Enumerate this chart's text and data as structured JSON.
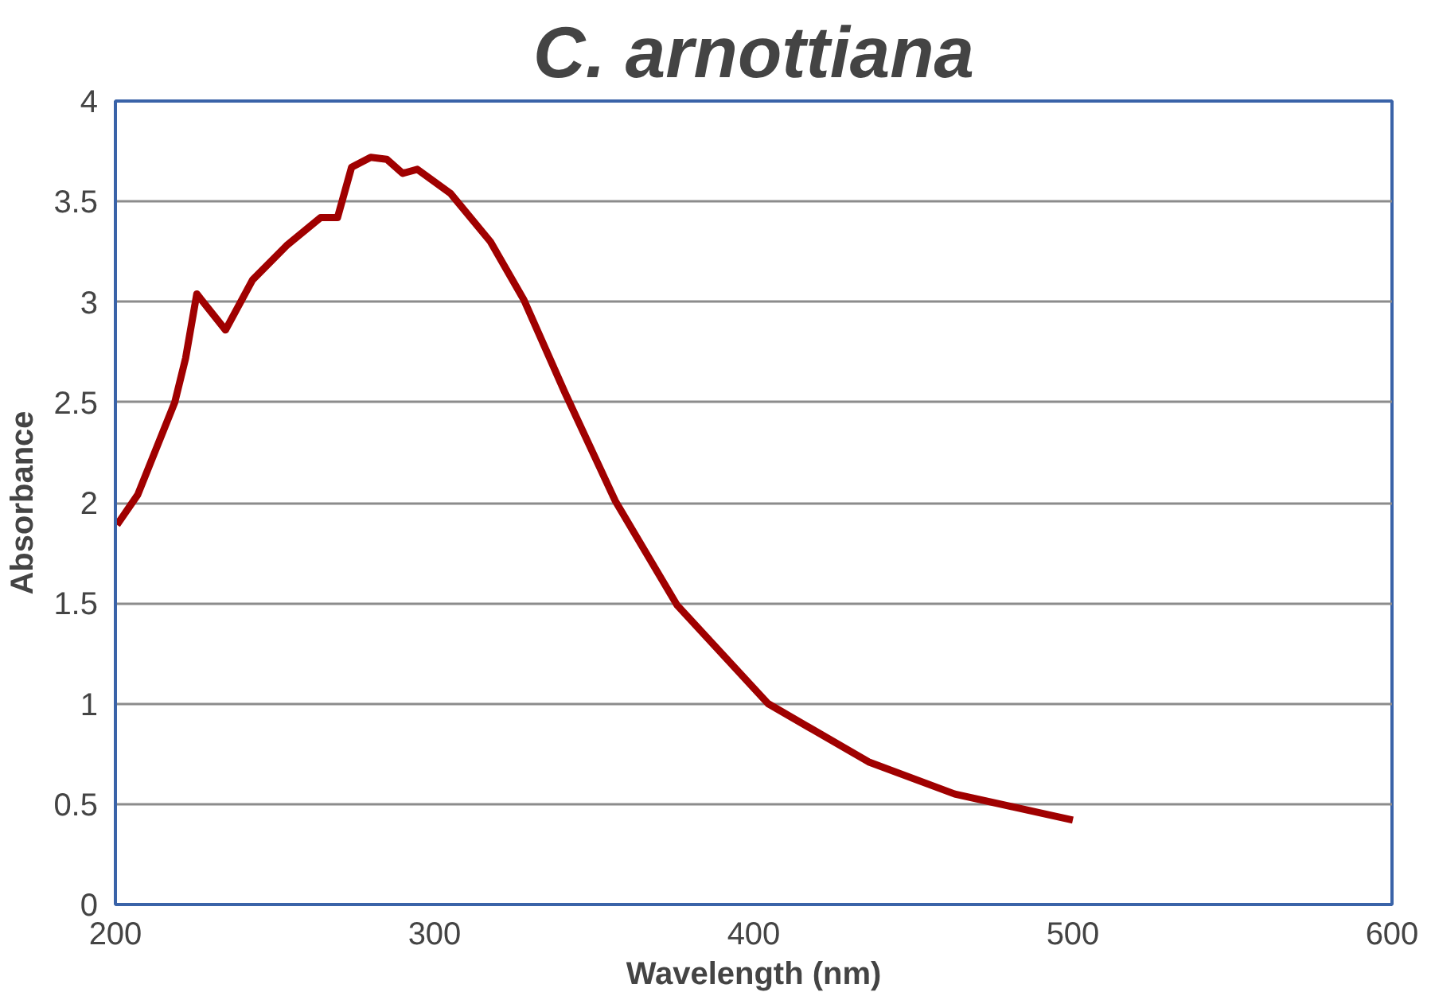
{
  "chart_data": {
    "type": "line",
    "title": "C. arnottiana",
    "xlabel": "Wavelength (nm)",
    "ylabel": "Absorbance",
    "x": [
      200.5,
      207,
      218.6,
      222,
      225.5,
      234.5,
      243,
      253.6,
      264.3,
      269.6,
      274,
      280,
      285,
      290,
      294.6,
      305,
      317.5,
      328,
      340.8,
      356.6,
      376,
      404.5,
      436,
      463,
      500
    ],
    "series": [
      {
        "color": "#a00000",
        "values": [
          1.89,
          2.04,
          2.5,
          2.72,
          3.04,
          2.86,
          3.11,
          3.28,
          3.42,
          3.42,
          3.67,
          3.72,
          3.71,
          3.64,
          3.66,
          3.54,
          3.3,
          3.01,
          2.55,
          2.01,
          1.49,
          1.0,
          0.71,
          0.55,
          0.42
        ]
      }
    ],
    "xlim": [
      200,
      600
    ],
    "xticks": [
      200,
      300,
      400,
      500,
      600
    ],
    "ylim": [
      0,
      4
    ],
    "yticks": [
      0,
      0.5,
      1,
      1.5,
      2,
      2.5,
      3,
      3.5,
      4
    ],
    "grid": "y",
    "marker": "none",
    "line_style": "solid"
  }
}
